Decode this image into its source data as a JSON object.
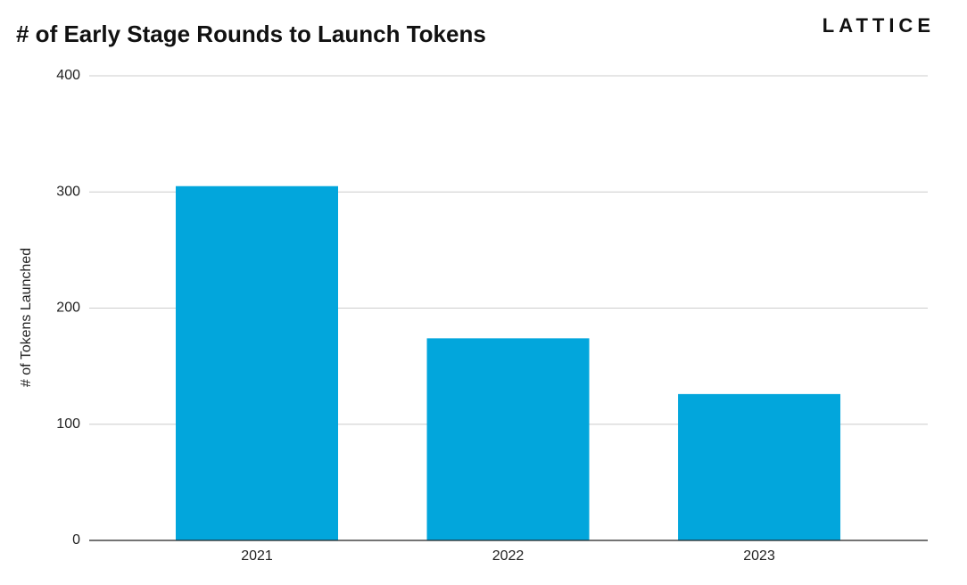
{
  "chart_data": {
    "type": "bar",
    "title": "# of Early Stage Rounds to Launch Tokens",
    "brand": "LATTICE",
    "y_label": "# of Tokens Launched",
    "categories": [
      "2021",
      "2022",
      "2023"
    ],
    "values": [
      305,
      174,
      126
    ],
    "color": "#02a6dc",
    "ylim": [
      0,
      400
    ],
    "yticks": [
      0,
      100,
      200,
      300,
      400
    ],
    "grid": true
  }
}
